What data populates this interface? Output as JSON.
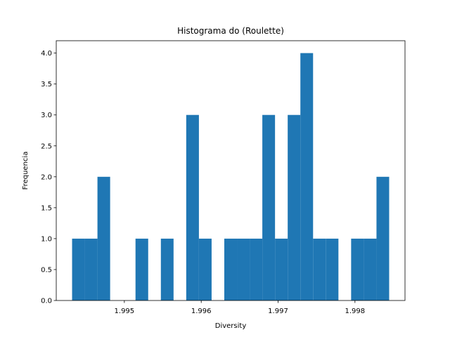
{
  "chart_data": {
    "type": "histogram",
    "title": "Histograma do (Roulette)",
    "x_label": "Diversity",
    "y_label": "Frequencia",
    "bins": [
      1.99432,
      1.994485,
      1.99465,
      1.994815,
      1.99498,
      1.995145,
      1.99531,
      1.995475,
      1.99564,
      1.995805,
      1.99597,
      1.996135,
      1.9963,
      1.996465,
      1.99663,
      1.996795,
      1.99696,
      1.997125,
      1.99729,
      1.997455,
      1.99762,
      1.997785,
      1.99795,
      1.998115,
      1.99828,
      1.998445
    ],
    "counts": [
      1,
      1,
      2,
      0,
      0,
      1,
      0,
      1,
      0,
      3,
      1,
      0,
      1,
      1,
      1,
      3,
      1,
      3,
      4,
      1,
      1,
      0,
      1,
      1,
      2
    ],
    "color": "#1f77b4",
    "xlim": [
      1.994114,
      1.998651
    ],
    "xticks": [
      1.995,
      1.996,
      1.997,
      1.998
    ],
    "ylim": [
      0,
      4.2
    ],
    "yticks": [
      {
        "value": 0,
        "label": "0.0"
      },
      {
        "value": 0.5,
        "label": "0.5"
      },
      {
        "value": 1,
        "label": "1.0"
      },
      {
        "value": 1.5,
        "label": "1.5"
      },
      {
        "value": 2,
        "label": "2.0"
      },
      {
        "value": 2.5,
        "label": "2.5"
      },
      {
        "value": 3,
        "label": "3.0"
      },
      {
        "value": 3.5,
        "label": "3.5"
      },
      {
        "value": 4,
        "label": "4.0"
      }
    ],
    "grid": false
  }
}
